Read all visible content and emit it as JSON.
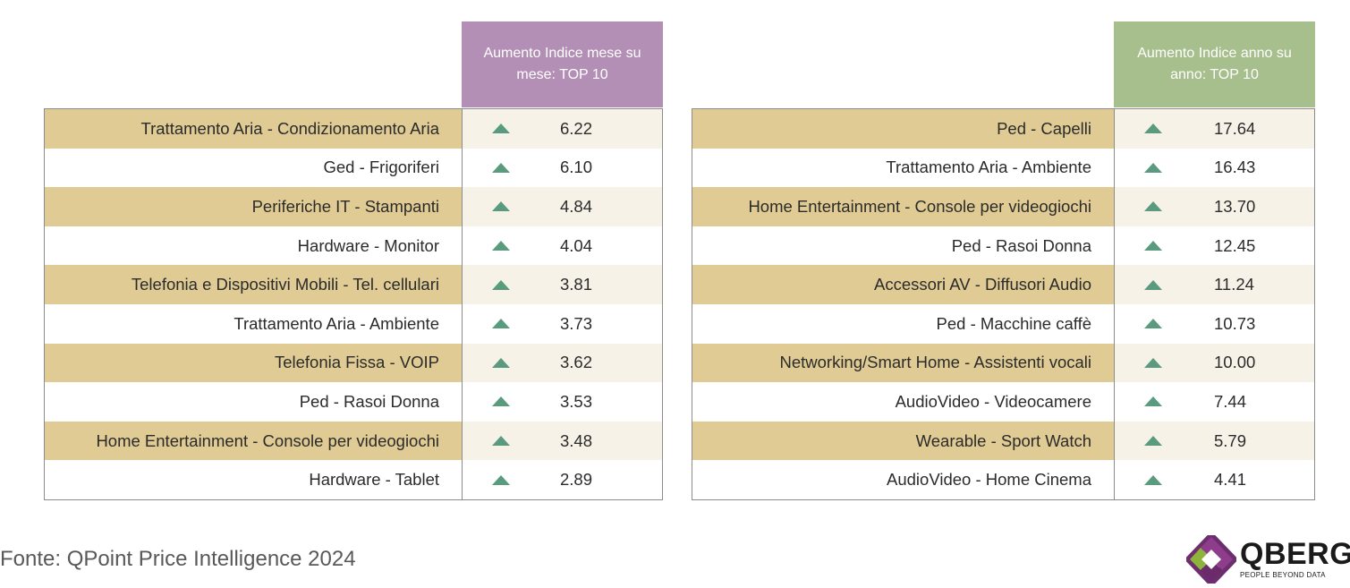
{
  "chart_data": [
    {
      "type": "table",
      "title": "Aumento Indice mese su mese: TOP 10",
      "header_color": "#b48fb5",
      "categories": [
        "Trattamento Aria - Condizionamento Aria",
        "Ged - Frigoriferi",
        "Periferiche IT - Stampanti",
        "Hardware - Monitor",
        "Telefonia e Dispositivi Mobili - Tel. cellulari",
        "Trattamento Aria - Ambiente",
        "Telefonia Fissa - VOIP",
        "Ped - Rasoi Donna",
        "Home Entertainment - Console per videogiochi",
        "Hardware - Tablet"
      ],
      "values": [
        "6.22",
        "6.10",
        "4.84",
        "4.04",
        "3.81",
        "3.73",
        "3.62",
        "3.53",
        "3.48",
        "2.89"
      ],
      "trend": "up"
    },
    {
      "type": "table",
      "title": "Aumento Indice anno su anno: TOP 10",
      "header_color": "#a7bf8d",
      "categories": [
        "Ped - Capelli",
        "Trattamento Aria - Ambiente",
        "Home Entertainment - Console per videogiochi",
        "Ped - Rasoi Donna",
        "Accessori AV - Diffusori Audio",
        "Ped - Macchine caffè",
        "Networking/Smart Home - Assistenti vocali",
        "AudioVideo - Videocamere",
        "Wearable - Sport Watch",
        "AudioVideo - Home Cinema"
      ],
      "values": [
        "17.64",
        "16.43",
        "13.70",
        "12.45",
        "11.24",
        "10.73",
        "10.00",
        "7.44",
        "5.79",
        "4.41"
      ],
      "trend": "up"
    }
  ],
  "colors": {
    "row_highlight_label": "#dfcb93",
    "row_highlight_value": "#f7f2e7",
    "arrow": "#5a9b7f"
  },
  "footer": {
    "text": "Fonte: QPoint Price Intelligence 2024"
  },
  "logo": {
    "name": "QBERG",
    "tagline": "PEOPLE BEYOND DATA",
    "icon": "qberg-diamond-icon"
  }
}
